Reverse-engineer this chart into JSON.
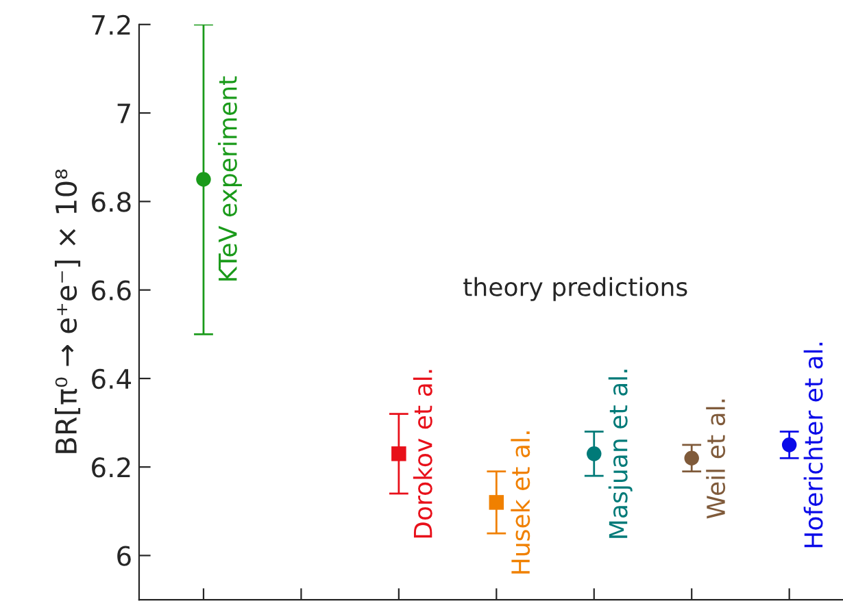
{
  "chart_data": {
    "type": "scatter",
    "ylabel": "BR[π⁰ → e⁺e⁻] × 10⁸",
    "categories": [
      null,
      null,
      null,
      null,
      null,
      null,
      null
    ],
    "series": [
      {
        "name": "KTeV experiment",
        "color": "#1a9a1a",
        "marker": "circle",
        "values": [
          6.85,
          null,
          null,
          null,
          null,
          null,
          null
        ],
        "errors": [
          [
            6.5,
            7.2
          ],
          null,
          null,
          null,
          null,
          null,
          null
        ]
      },
      {
        "name": "Dorokov et al.",
        "color": "#e8101a",
        "marker": "square",
        "values": [
          null,
          null,
          6.23,
          null,
          null,
          null,
          null
        ],
        "errors": [
          null,
          null,
          [
            6.14,
            6.32
          ],
          null,
          null,
          null,
          null
        ]
      },
      {
        "name": "Husek et al.",
        "color": "#f08000",
        "marker": "square",
        "values": [
          null,
          null,
          null,
          6.12,
          null,
          null,
          null
        ],
        "errors": [
          null,
          null,
          null,
          [
            6.05,
            6.19
          ],
          null,
          null,
          null
        ]
      },
      {
        "name": "Masjuan et al.",
        "color": "#007a78",
        "marker": "circle",
        "values": [
          null,
          null,
          null,
          null,
          6.23,
          null,
          null
        ],
        "errors": [
          null,
          null,
          null,
          null,
          [
            6.18,
            6.28
          ],
          null,
          null
        ]
      },
      {
        "name": "Weil et al.",
        "color": "#7f5a3a",
        "marker": "circle",
        "values": [
          null,
          null,
          null,
          null,
          null,
          6.22,
          null
        ],
        "errors": [
          null,
          null,
          null,
          null,
          null,
          [
            6.19,
            6.25
          ],
          null
        ]
      },
      {
        "name": "Hoferichter et al.",
        "color": "#0a0ae8",
        "marker": "circle",
        "values": [
          null,
          null,
          null,
          null,
          null,
          null,
          6.25
        ],
        "errors": [
          null,
          null,
          null,
          null,
          null,
          null,
          [
            6.22,
            6.28
          ]
        ]
      }
    ],
    "annotations": [
      "theory predictions"
    ],
    "ylim": [
      5.9,
      7.2
    ],
    "yticks": [
      6,
      6.2,
      6.4,
      6.6,
      6.8,
      7,
      7.2
    ],
    "tick_labels": "y",
    "grid": false,
    "legend": false
  }
}
